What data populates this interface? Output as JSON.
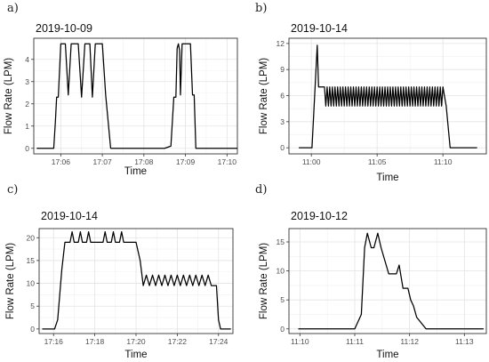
{
  "chart_data": [
    {
      "panel": "a)",
      "type": "line",
      "title": "2019-10-09",
      "xlabel": "Time",
      "ylabel": "Flow Rate (LPM)",
      "x_unit": "time of day (minutes after 17:00)",
      "xlim": [
        5.35,
        10.25
      ],
      "ylim": [
        -0.25,
        4.95
      ],
      "x_ticks": [
        6,
        7,
        8,
        9,
        10
      ],
      "x_tick_labels": [
        "17:06",
        "17:07",
        "17:08",
        "17:09",
        "17:10"
      ],
      "y_ticks": [
        0,
        1,
        2,
        3,
        4
      ],
      "y_tick_labels": [
        "0",
        "1",
        "2",
        "3",
        "4"
      ],
      "grid": true,
      "legend": "none",
      "x": [
        5.42,
        5.83,
        5.87,
        5.9,
        5.94,
        6.0,
        6.07,
        6.11,
        6.18,
        6.25,
        6.31,
        6.35,
        6.42,
        6.5,
        6.58,
        6.65,
        6.7,
        6.76,
        6.83,
        6.88,
        6.92,
        7.0,
        7.08,
        7.2,
        7.4,
        8.5,
        8.65,
        8.72,
        8.77,
        8.8,
        8.83,
        8.86,
        8.88,
        8.92,
        9.0,
        9.12,
        9.17,
        9.21,
        9.25,
        9.35,
        10.25
      ],
      "y": [
        0,
        0,
        1.2,
        2.3,
        2.3,
        4.7,
        4.7,
        4.7,
        2.4,
        4.7,
        4.7,
        4.7,
        4.7,
        2.3,
        4.7,
        4.7,
        4.7,
        2.3,
        4.7,
        4.7,
        4.7,
        4.7,
        2.4,
        0,
        0,
        0,
        0.1,
        2.3,
        2.3,
        4.5,
        4.7,
        4.4,
        2.4,
        4.7,
        4.7,
        4.7,
        2.4,
        2.4,
        0,
        0,
        0
      ]
    },
    {
      "panel": "b)",
      "type": "line",
      "title": "2019-10-14",
      "xlabel": "Time",
      "ylabel": "Flow Rate (LPM)",
      "x_unit": "time of day (minutes after 11:00)",
      "xlim": [
        -1.7,
        13.3
      ],
      "ylim": [
        -0.7,
        12.6
      ],
      "x_ticks": [
        0,
        5,
        10
      ],
      "x_tick_labels": [
        "11:00",
        "11:05",
        "11:10"
      ],
      "y_ticks": [
        0,
        3,
        6,
        9,
        12
      ],
      "y_tick_labels": [
        "0",
        "3",
        "6",
        "9",
        "12"
      ],
      "grid": true,
      "legend": "none",
      "pattern": "flow ramps to a spike of about 12 LPM near 11:00, then oscillates between about 4.8 and 7 LPM until about 11:10, then drops to 0",
      "x_key": [
        -0.95,
        0.05,
        0.45,
        0.55,
        0.7,
        1.0,
        10.0,
        10.25,
        10.4,
        10.55,
        10.9,
        12.6
      ],
      "y_key": [
        0,
        0,
        11.8,
        7.0,
        7.0,
        7.0,
        7.0,
        4.8,
        2.4,
        0,
        0,
        0
      ],
      "oscillation": {
        "start": 1.0,
        "end": 10.0,
        "high": 7.0,
        "low": 4.8,
        "cycle_minutes": 0.2
      }
    },
    {
      "panel": "c)",
      "type": "line",
      "title": "2019-10-14",
      "xlabel": "Time",
      "ylabel": "Flow Rate (LPM)",
      "x_unit": "time of day (minutes after 17:00)",
      "xlim": [
        15.3,
        24.7
      ],
      "ylim": [
        -1.0,
        22.0
      ],
      "x_ticks": [
        16,
        18,
        20,
        22,
        24
      ],
      "x_tick_labels": [
        "17:16",
        "17:18",
        "17:20",
        "17:22",
        "17:24"
      ],
      "y_ticks": [
        0,
        5,
        10,
        15,
        20
      ],
      "y_tick_labels": [
        "0",
        "5",
        "10",
        "15",
        "20"
      ],
      "grid": true,
      "legend": "none",
      "x": [
        15.45,
        16.05,
        16.2,
        16.4,
        16.55,
        16.8,
        16.9,
        17.0,
        17.2,
        17.3,
        17.4,
        17.6,
        17.7,
        17.8,
        18.0,
        18.4,
        18.5,
        18.6,
        18.8,
        18.9,
        19.0,
        19.2,
        19.3,
        19.4,
        19.7,
        20.0,
        20.2,
        20.35,
        20.5,
        20.65,
        20.8,
        20.95,
        21.1,
        21.25,
        21.4,
        21.55,
        21.7,
        21.85,
        22.0,
        22.15,
        22.3,
        22.45,
        22.6,
        22.75,
        22.9,
        23.05,
        23.2,
        23.35,
        23.5,
        23.65,
        23.9,
        24.0,
        24.1,
        24.6
      ],
      "y": [
        0,
        0,
        2,
        13,
        19,
        19,
        21.3,
        19,
        19,
        21.3,
        19,
        19,
        21.3,
        19,
        19,
        19,
        21.3,
        19,
        19,
        21.3,
        19,
        19,
        21.3,
        19,
        19,
        19,
        15,
        9.5,
        11.8,
        9.5,
        11.8,
        9.5,
        11.8,
        9.5,
        11.8,
        9.5,
        11.8,
        9.5,
        11.8,
        9.5,
        11.8,
        9.5,
        11.8,
        9.5,
        11.8,
        9.5,
        11.8,
        9.5,
        11.8,
        9.5,
        9.5,
        2,
        0,
        0
      ]
    },
    {
      "panel": "d)",
      "type": "line",
      "title": "2019-10-12",
      "xlabel": "Time",
      "ylabel": "Flow Rate (LPM)",
      "x_unit": "time of day (minutes after 11:00)",
      "xlim": [
        9.8,
        13.4
      ],
      "ylim": [
        -0.8,
        17.3
      ],
      "x_ticks": [
        10,
        11,
        12,
        13
      ],
      "x_tick_labels": [
        "11:10",
        "11:11",
        "11:12",
        "11:13"
      ],
      "y_ticks": [
        0,
        5,
        10,
        15
      ],
      "y_tick_labels": [
        "0",
        "5",
        "10",
        "15"
      ],
      "grid": true,
      "legend": "none",
      "x": [
        9.97,
        11.0,
        11.12,
        11.18,
        11.23,
        11.3,
        11.35,
        11.42,
        11.48,
        11.62,
        11.76,
        11.81,
        11.88,
        11.92,
        11.97,
        12.02,
        12.07,
        12.13,
        12.3,
        13.35
      ],
      "y": [
        0,
        0,
        2.5,
        14,
        16.5,
        14,
        14,
        16.5,
        14,
        9.5,
        9.5,
        11,
        7,
        7,
        7,
        5,
        4,
        2,
        0,
        0
      ]
    }
  ]
}
